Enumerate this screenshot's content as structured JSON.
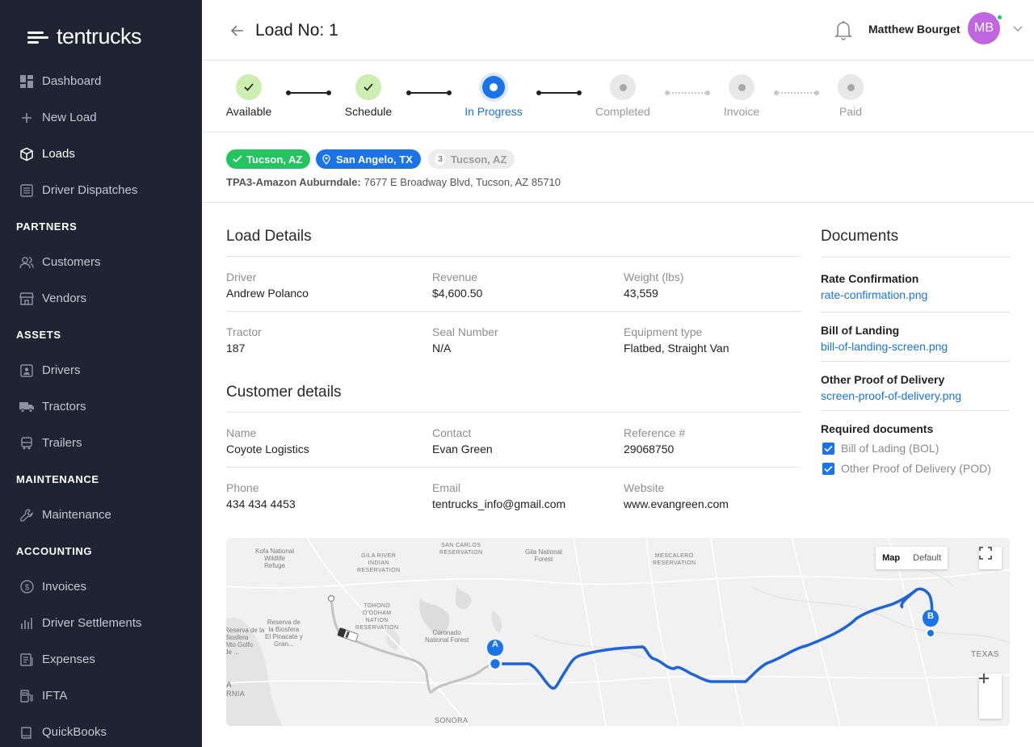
{
  "app": {
    "brand": "tentrucks"
  },
  "sidebar": {
    "items": [
      {
        "label": "Dashboard",
        "icon": "dashboard-icon"
      },
      {
        "label": "New Load",
        "icon": "plus-icon"
      },
      {
        "label": "Loads",
        "icon": "box-icon",
        "active": true
      },
      {
        "label": "Driver Dispatches",
        "icon": "list-icon"
      }
    ],
    "partners_title": "PARTNERS",
    "partners": [
      {
        "label": "Customers",
        "icon": "users-icon"
      },
      {
        "label": "Vendors",
        "icon": "store-icon"
      }
    ],
    "assets_title": "ASSETS",
    "assets": [
      {
        "label": "Drivers",
        "icon": "id-card-icon"
      },
      {
        "label": "Tractors",
        "icon": "truck-icon"
      },
      {
        "label": "Trailers",
        "icon": "trailer-icon"
      }
    ],
    "maintenance_title": "MAINTENANCE",
    "maintenance": [
      {
        "label": "Maintenance",
        "icon": "wrench-icon"
      }
    ],
    "accounting_title": "ACCOUNTING",
    "accounting": [
      {
        "label": "Invoices",
        "icon": "dollar-icon"
      },
      {
        "label": "Driver Settlements",
        "icon": "bar-chart-icon"
      },
      {
        "label": "Expenses",
        "icon": "receipt-icon"
      },
      {
        "label": "IFTA",
        "icon": "fuel-icon"
      },
      {
        "label": "QuickBooks",
        "icon": "book-icon"
      }
    ]
  },
  "header": {
    "title": "Load No: 1",
    "user_name": "Matthew Bourget",
    "avatar_initials": "MB"
  },
  "stepper": {
    "steps": [
      {
        "label": "Available",
        "state": "done"
      },
      {
        "label": "Schedule",
        "state": "done"
      },
      {
        "label": "In Progress",
        "state": "current"
      },
      {
        "label": "Completed",
        "state": "pending"
      },
      {
        "label": "Invoice",
        "state": "pending"
      },
      {
        "label": "Paid",
        "state": "pending"
      }
    ]
  },
  "stops": {
    "chips": [
      {
        "label": "Tucson, AZ",
        "style": "green"
      },
      {
        "label": "San Angelo, TX",
        "style": "blue"
      },
      {
        "number": "3",
        "label": "Tucson, AZ",
        "style": "gray"
      }
    ],
    "address_name": "TPA3-Amazon Auburndale:",
    "address": "7677 E Broadway Blvd, Tucson, AZ 85710"
  },
  "load_details": {
    "title": "Load Details",
    "fields": [
      {
        "label": "Driver",
        "value": "Andrew Polanco"
      },
      {
        "label": "Revenue",
        "value": "$4,600.50"
      },
      {
        "label": "Weight (lbs)",
        "value": "43,559"
      },
      {
        "label": "Tractor",
        "value": "187"
      },
      {
        "label": "Seal Number",
        "value": "N/A"
      },
      {
        "label": "Equipment type",
        "value": "Flatbed, Straight Van"
      }
    ]
  },
  "customer_details": {
    "title": "Customer details",
    "fields": [
      {
        "label": "Name",
        "value": "Coyote Logistics"
      },
      {
        "label": "Contact",
        "value": "Evan Green"
      },
      {
        "label": "Reference #",
        "value": "29068750"
      },
      {
        "label": "Phone",
        "value": "434 434 4453"
      },
      {
        "label": "Email",
        "value": "tentrucks_info@gmail.com"
      },
      {
        "label": "Website",
        "value": "www.evangreen.com"
      }
    ]
  },
  "documents": {
    "title": "Documents",
    "items": [
      {
        "label": "Rate Confirmation",
        "file": "rate-confirmation.png"
      },
      {
        "label": "Bill of Landing",
        "file": "bill-of-landing-screen.png"
      },
      {
        "label": "Other Proof of Delivery",
        "file": "screen-proof-of-delivery.png"
      }
    ],
    "required_title": "Required documents",
    "required": [
      {
        "label": "Bill of Lading (BOL)",
        "checked": true
      },
      {
        "label": "Other Proof of Delivery (POD)",
        "checked": true
      }
    ]
  },
  "map": {
    "toggle_map": "Map",
    "toggle_default": "Default",
    "marker_a": "A",
    "marker_b": "B",
    "labels": {
      "kofa": "Kofa National\nWildlife\nRefuge",
      "gila_river": "GILA RIVER\nINDIAN\nRESERVATION",
      "san_carlos": "SAN CARLOS\nRESERVATION",
      "gila_forest": "Gila National\nForest",
      "mescalero": "MESCALERO\nRESERVATION",
      "tohono": "TOHONO\nO'ODHAM\nNATION\nRESERVATION",
      "coronado": "Coronado\nNational Forest",
      "reserva1": "Reserva de la\nBiosfera\nAlto Golfo\nde ...",
      "reserva2": "Reserva de\nla Biosfera\nEl Pinacate y\nGran...",
      "texas": "TEXAS",
      "sonora": "SONORA",
      "rnia": "RNIA",
      "a_edge": "A"
    },
    "colors": {
      "route": "#1e64d8",
      "marker": "#1a73e8"
    }
  },
  "colors": {
    "sidebar_bg": "#1f2433",
    "accent_blue": "#1a73e8",
    "done_green": "#cdeeb1",
    "chip_green": "#22c55e",
    "chip_blue": "#1a73e8",
    "avatar": "#c066e0"
  }
}
